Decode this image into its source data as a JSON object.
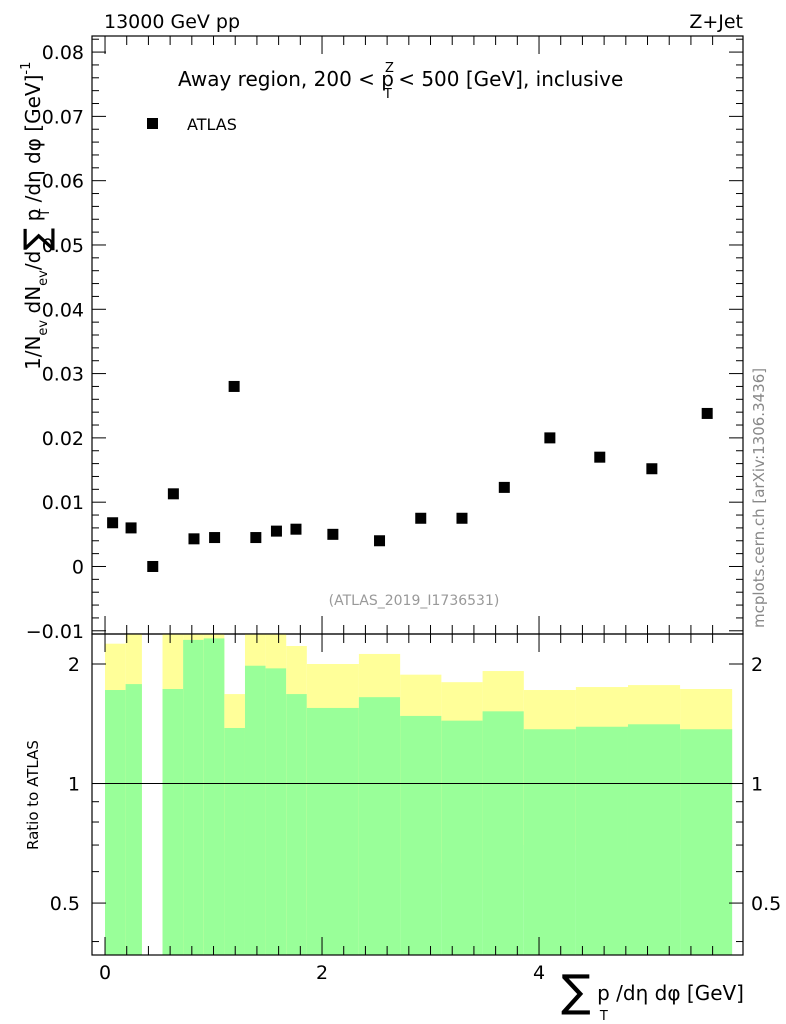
{
  "header": {
    "left_label": "13000 GeV pp",
    "right_label": "Z+Jet",
    "side_label": "mcplots.cern.ch [arXiv:1306.3436]"
  },
  "chart_data": [
    {
      "type": "scatter",
      "title": "Away region, 200 < p_T^Z < 500 [GeV], inclusive",
      "title_parts": {
        "pre": "Away region, 200 < p",
        "sup": "Z",
        "sub": "T",
        "post": " < 500 [GeV], inclusive"
      },
      "ylabel": "1/N_ev dN_ev/d∑p_T/dη dφ [GeV]^-1",
      "ylabel_parts": {
        "a": "1/N",
        "ev": "ev",
        "b": " dN",
        "c": "/d",
        "sum": "∑",
        "d": " p",
        "T": "T",
        "e": " /dη dφ  [GeV]",
        "pow": "-1"
      },
      "watermark": "(ATLAS_2019_I1736531)",
      "legend": [
        {
          "name": "ATLAS",
          "marker": "square",
          "color": "#000000"
        }
      ],
      "legend_position": "top-left",
      "xlim": [
        -0.12,
        5.88
      ],
      "ylim": [
        -0.0105,
        0.0825
      ],
      "yticks": [
        -0.01,
        0,
        0.01,
        0.02,
        0.03,
        0.04,
        0.05,
        0.06,
        0.07,
        0.08
      ],
      "ytick_labels": [
        "−0.01",
        "0",
        "0.01",
        "0.02",
        "0.03",
        "0.04",
        "0.05",
        "0.06",
        "0.07",
        "0.08"
      ],
      "series": [
        {
          "name": "ATLAS",
          "x": [
            0.07,
            0.24,
            0.44,
            0.63,
            0.82,
            1.01,
            1.19,
            1.39,
            1.58,
            1.76,
            2.1,
            2.53,
            2.91,
            3.29,
            3.68,
            4.1,
            4.56,
            5.04,
            5.55
          ],
          "y": [
            0.0068,
            0.006,
            0.0,
            0.0113,
            0.0043,
            0.0045,
            0.028,
            0.0045,
            0.0055,
            0.0058,
            0.005,
            0.004,
            0.0075,
            0.0075,
            0.0123,
            0.02,
            0.017,
            0.0152,
            0.0238
          ]
        }
      ]
    },
    {
      "type": "area",
      "ylabel": "Ratio to ATLAS",
      "xlabel": "∑p_T/dη dφ [GeV]",
      "xlabel_parts": {
        "sum": "∑",
        "a": " p",
        "T": "T",
        "b": " /dη dφ [GeV]"
      },
      "xlim": [
        -0.12,
        5.88
      ],
      "ylim": [
        0.37,
        2.38
      ],
      "yscale": "log",
      "yticks": [
        0.5,
        1,
        2
      ],
      "ytick_labels": [
        "0.5",
        "1",
        "2"
      ],
      "xticks": [
        0,
        2,
        4
      ],
      "xtick_labels": [
        "0",
        "2",
        "4"
      ],
      "reference_line": 1,
      "bins": [
        {
          "lo": 0.0,
          "hi": 0.19,
          "y1_lo": 0.37,
          "y1_hi": 1.72,
          "y2_lo": 0.37,
          "y2_hi": 2.25
        },
        {
          "lo": 0.19,
          "hi": 0.34,
          "y1_lo": 0.37,
          "y1_hi": 1.78,
          "y2_lo": 0.37,
          "y2_hi": 2.38
        },
        {
          "lo": 0.53,
          "hi": 0.72,
          "y1_lo": 0.37,
          "y1_hi": 1.73,
          "y2_lo": 0.37,
          "y2_hi": 2.38
        },
        {
          "lo": 0.72,
          "hi": 0.91,
          "y1_lo": 0.37,
          "y1_hi": 2.3,
          "y2_lo": 0.37,
          "y2_hi": 2.38
        },
        {
          "lo": 0.91,
          "hi": 1.1,
          "y1_lo": 0.37,
          "y1_hi": 2.32,
          "y2_lo": 0.37,
          "y2_hi": 2.38
        },
        {
          "lo": 1.1,
          "hi": 1.29,
          "y1_lo": 0.37,
          "y1_hi": 1.38,
          "y2_lo": 0.72,
          "y2_hi": 1.68
        },
        {
          "lo": 1.29,
          "hi": 1.48,
          "y1_lo": 0.37,
          "y1_hi": 1.98,
          "y2_lo": 0.37,
          "y2_hi": 2.38
        },
        {
          "lo": 1.48,
          "hi": 1.67,
          "y1_lo": 0.37,
          "y1_hi": 1.95,
          "y2_lo": 0.37,
          "y2_hi": 2.38
        },
        {
          "lo": 1.67,
          "hi": 1.86,
          "y1_lo": 0.37,
          "y1_hi": 1.68,
          "y2_lo": 0.37,
          "y2_hi": 2.22
        },
        {
          "lo": 1.86,
          "hi": 2.34,
          "y1_lo": 0.37,
          "y1_hi": 1.55,
          "y2_lo": 0.48,
          "y2_hi": 2.0
        },
        {
          "lo": 2.34,
          "hi": 2.72,
          "y1_lo": 0.37,
          "y1_hi": 1.65,
          "y2_lo": 0.37,
          "y2_hi": 2.12
        },
        {
          "lo": 2.72,
          "hi": 3.1,
          "y1_lo": 0.37,
          "y1_hi": 1.48,
          "y2_lo": 0.56,
          "y2_hi": 1.88
        },
        {
          "lo": 3.1,
          "hi": 3.48,
          "y1_lo": 0.37,
          "y1_hi": 1.44,
          "y2_lo": 0.63,
          "y2_hi": 1.8
        },
        {
          "lo": 3.48,
          "hi": 3.86,
          "y1_lo": 0.37,
          "y1_hi": 1.52,
          "y2_lo": 0.54,
          "y2_hi": 1.92
        },
        {
          "lo": 3.86,
          "hi": 4.34,
          "y1_lo": 0.37,
          "y1_hi": 1.37,
          "y2_lo": 0.7,
          "y2_hi": 1.72
        },
        {
          "lo": 4.34,
          "hi": 4.82,
          "y1_lo": 0.37,
          "y1_hi": 1.39,
          "y2_lo": 0.68,
          "y2_hi": 1.75
        },
        {
          "lo": 4.82,
          "hi": 5.3,
          "y1_lo": 0.37,
          "y1_hi": 1.41,
          "y2_lo": 0.66,
          "y2_hi": 1.77
        },
        {
          "lo": 5.3,
          "hi": 5.78,
          "y1_lo": 0.37,
          "y1_hi": 1.37,
          "y2_lo": 0.7,
          "y2_hi": 1.73
        }
      ],
      "colors": {
        "inner_band": "#99ff99",
        "outer_band": "#ffff99",
        "reference": "#000000"
      }
    }
  ]
}
